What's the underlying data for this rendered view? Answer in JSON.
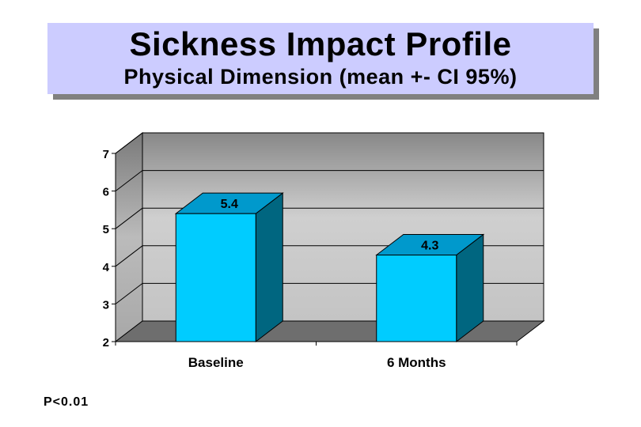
{
  "header": {
    "title": "Sickness Impact Profile",
    "subtitle": "Physical Dimension (mean +- CI 95%)"
  },
  "footnote": "P<0.01",
  "colors": {
    "title_bg": "#ccccff",
    "bar_front": "#00ccff",
    "bar_top": "#0099cc",
    "bar_side": "#006680",
    "wall_back": "#b2b2b2",
    "floor": "#6e6e6e"
  },
  "chart_data": {
    "type": "bar",
    "title": "Sickness Impact Profile",
    "subtitle": "Physical Dimension (mean +- CI 95%)",
    "categories": [
      "Baseline",
      "6 Months"
    ],
    "values": [
      5.4,
      4.3
    ],
    "data_labels": [
      "5.4",
      "4.3"
    ],
    "yticks": [
      "2",
      "3",
      "4",
      "5",
      "6",
      "7"
    ],
    "ylim": [
      2,
      7
    ],
    "xlabel": "",
    "ylabel": "",
    "grid": true,
    "legend": "none",
    "style": "3d"
  }
}
